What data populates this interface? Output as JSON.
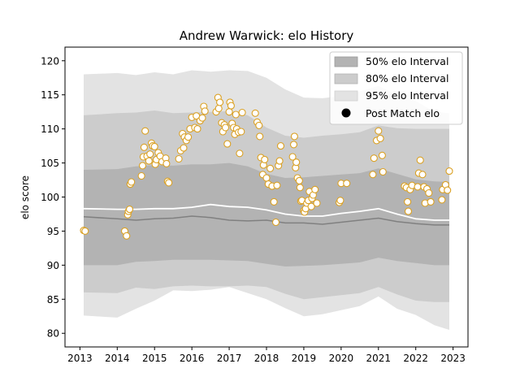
{
  "chart_data": {
    "type": "scatter",
    "title": "Andrew Warwick: elo History",
    "xlabel": "",
    "ylabel": "elo score",
    "xlim": [
      2012.6,
      2023.4
    ],
    "ylim": [
      78,
      122
    ],
    "x_ticks": [
      "2013",
      "2014",
      "2015",
      "2016",
      "2017",
      "2018",
      "2019",
      "2020",
      "2021",
      "2022",
      "2023"
    ],
    "y_ticks": [
      "80",
      "85",
      "90",
      "95",
      "100",
      "105",
      "110",
      "115",
      "120"
    ],
    "grid": false,
    "legend_position": "top-right",
    "bands": {
      "x": [
        2013.1,
        2014.0,
        2014.5,
        2015.0,
        2015.5,
        2016.0,
        2016.5,
        2017.0,
        2017.5,
        2018.0,
        2018.5,
        2019.0,
        2019.5,
        2020.0,
        2020.5,
        2021.0,
        2021.5,
        2022.0,
        2022.5,
        2022.9
      ],
      "interval_95": {
        "lower": [
          82.6,
          82.3,
          83.6,
          84.8,
          86.3,
          86.2,
          86.4,
          86.8,
          85.9,
          85.0,
          83.7,
          82.5,
          82.8,
          83.4,
          84.0,
          85.4,
          83.6,
          82.7,
          81.2,
          80.5
        ],
        "upper": [
          118.0,
          118.2,
          117.9,
          118.3,
          118.0,
          118.6,
          118.4,
          118.6,
          118.5,
          117.5,
          115.8,
          114.6,
          114.5,
          114.8,
          115.5,
          116.3,
          115.0,
          114.1,
          112.5,
          112.3
        ]
      },
      "interval_80": {
        "lower": [
          86.0,
          85.9,
          86.7,
          86.5,
          86.9,
          87.0,
          86.9,
          86.9,
          87.0,
          86.8,
          85.8,
          85.0,
          85.3,
          85.6,
          85.9,
          86.8,
          85.7,
          84.8,
          84.6,
          84.6
        ],
        "upper": [
          112.0,
          112.3,
          112.4,
          112.7,
          112.3,
          112.4,
          112.5,
          112.6,
          112.0,
          110.2,
          109.0,
          108.7,
          109.0,
          109.2,
          109.5,
          110.5,
          110.1,
          110.0,
          110.0,
          110.0
        ]
      },
      "interval_50": {
        "lower": [
          90.0,
          90.0,
          90.5,
          90.6,
          90.8,
          90.8,
          90.8,
          90.7,
          90.6,
          90.2,
          89.8,
          89.9,
          90.0,
          90.2,
          90.4,
          91.1,
          90.6,
          90.3,
          90.0,
          90.0
        ],
        "upper": [
          104.0,
          104.1,
          104.5,
          104.7,
          104.6,
          104.8,
          104.8,
          105.0,
          104.5,
          103.4,
          102.8,
          102.9,
          103.1,
          103.3,
          103.5,
          104.2,
          103.4,
          102.6,
          102.3,
          102.2
        ]
      },
      "median": [
        97.1,
        96.8,
        96.6,
        96.8,
        96.9,
        97.2,
        97.0,
        96.6,
        96.5,
        96.6,
        96.2,
        96.2,
        96.0,
        96.3,
        96.6,
        96.9,
        96.4,
        96.1,
        95.9,
        95.9
      ],
      "mean": [
        98.3,
        98.2,
        98.2,
        98.3,
        98.3,
        98.5,
        98.9,
        98.6,
        98.5,
        98.1,
        97.5,
        97.2,
        97.2,
        97.6,
        97.9,
        98.3,
        97.5,
        96.8,
        96.6,
        96.6
      ]
    },
    "legend": [
      "50% elo Interval",
      "80% elo Interval",
      "95% elo Interval",
      "Post Match elo"
    ],
    "points": [
      {
        "x": 2013.1,
        "y": 95.1
      },
      {
        "x": 2013.14,
        "y": 95.0
      },
      {
        "x": 2014.2,
        "y": 95.0
      },
      {
        "x": 2014.25,
        "y": 94.3
      },
      {
        "x": 2014.28,
        "y": 97.4
      },
      {
        "x": 2014.3,
        "y": 97.9
      },
      {
        "x": 2014.33,
        "y": 98.2
      },
      {
        "x": 2014.35,
        "y": 101.9
      },
      {
        "x": 2014.38,
        "y": 102.2
      },
      {
        "x": 2014.65,
        "y": 103.1
      },
      {
        "x": 2014.68,
        "y": 104.6
      },
      {
        "x": 2014.7,
        "y": 105.9
      },
      {
        "x": 2014.72,
        "y": 107.3
      },
      {
        "x": 2014.75,
        "y": 109.7
      },
      {
        "x": 2014.8,
        "y": 106.0
      },
      {
        "x": 2014.85,
        "y": 105.3
      },
      {
        "x": 2014.88,
        "y": 106.3
      },
      {
        "x": 2014.92,
        "y": 107.9
      },
      {
        "x": 2014.95,
        "y": 107.5
      },
      {
        "x": 2015.0,
        "y": 107.4
      },
      {
        "x": 2015.02,
        "y": 104.8
      },
      {
        "x": 2015.05,
        "y": 105.5
      },
      {
        "x": 2015.1,
        "y": 106.5
      },
      {
        "x": 2015.15,
        "y": 106.0
      },
      {
        "x": 2015.2,
        "y": 105.2
      },
      {
        "x": 2015.3,
        "y": 105.7
      },
      {
        "x": 2015.32,
        "y": 104.9
      },
      {
        "x": 2015.35,
        "y": 102.3
      },
      {
        "x": 2015.38,
        "y": 102.1
      },
      {
        "x": 2015.65,
        "y": 105.6
      },
      {
        "x": 2015.7,
        "y": 106.8
      },
      {
        "x": 2015.75,
        "y": 109.3
      },
      {
        "x": 2015.78,
        "y": 107.2
      },
      {
        "x": 2015.8,
        "y": 108.8
      },
      {
        "x": 2015.85,
        "y": 108.3
      },
      {
        "x": 2015.9,
        "y": 108.8
      },
      {
        "x": 2015.95,
        "y": 110.0
      },
      {
        "x": 2016.0,
        "y": 111.7
      },
      {
        "x": 2016.08,
        "y": 110.2
      },
      {
        "x": 2016.12,
        "y": 111.9
      },
      {
        "x": 2016.15,
        "y": 110.0
      },
      {
        "x": 2016.22,
        "y": 111.2
      },
      {
        "x": 2016.28,
        "y": 111.6
      },
      {
        "x": 2016.32,
        "y": 113.3
      },
      {
        "x": 2016.35,
        "y": 112.6
      },
      {
        "x": 2016.65,
        "y": 112.5
      },
      {
        "x": 2016.7,
        "y": 114.6
      },
      {
        "x": 2016.72,
        "y": 113.0
      },
      {
        "x": 2016.75,
        "y": 113.9
      },
      {
        "x": 2016.8,
        "y": 110.9
      },
      {
        "x": 2016.83,
        "y": 109.6
      },
      {
        "x": 2016.87,
        "y": 110.6
      },
      {
        "x": 2016.9,
        "y": 110.2
      },
      {
        "x": 2016.95,
        "y": 107.8
      },
      {
        "x": 2017.0,
        "y": 112.5
      },
      {
        "x": 2017.02,
        "y": 113.9
      },
      {
        "x": 2017.05,
        "y": 113.4
      },
      {
        "x": 2017.08,
        "y": 110.8
      },
      {
        "x": 2017.12,
        "y": 110.2
      },
      {
        "x": 2017.15,
        "y": 109.2
      },
      {
        "x": 2017.18,
        "y": 112.1
      },
      {
        "x": 2017.2,
        "y": 110.0
      },
      {
        "x": 2017.25,
        "y": 109.5
      },
      {
        "x": 2017.28,
        "y": 106.4
      },
      {
        "x": 2017.32,
        "y": 109.6
      },
      {
        "x": 2017.35,
        "y": 112.4
      },
      {
        "x": 2017.7,
        "y": 112.3
      },
      {
        "x": 2017.75,
        "y": 111.0
      },
      {
        "x": 2017.8,
        "y": 110.5
      },
      {
        "x": 2017.82,
        "y": 108.9
      },
      {
        "x": 2017.85,
        "y": 105.8
      },
      {
        "x": 2017.9,
        "y": 103.3
      },
      {
        "x": 2017.92,
        "y": 104.7
      },
      {
        "x": 2017.95,
        "y": 105.5
      },
      {
        "x": 2018.0,
        "y": 102.8
      },
      {
        "x": 2018.05,
        "y": 101.9
      },
      {
        "x": 2018.1,
        "y": 104.2
      },
      {
        "x": 2018.15,
        "y": 101.6
      },
      {
        "x": 2018.2,
        "y": 99.3
      },
      {
        "x": 2018.25,
        "y": 96.3
      },
      {
        "x": 2018.28,
        "y": 101.7
      },
      {
        "x": 2018.32,
        "y": 104.6
      },
      {
        "x": 2018.35,
        "y": 105.3
      },
      {
        "x": 2018.38,
        "y": 107.5
      },
      {
        "x": 2018.7,
        "y": 105.9
      },
      {
        "x": 2018.73,
        "y": 107.7
      },
      {
        "x": 2018.75,
        "y": 108.9
      },
      {
        "x": 2018.78,
        "y": 104.3
      },
      {
        "x": 2018.8,
        "y": 105.1
      },
      {
        "x": 2018.83,
        "y": 102.8
      },
      {
        "x": 2018.88,
        "y": 102.4
      },
      {
        "x": 2018.9,
        "y": 101.4
      },
      {
        "x": 2018.92,
        "y": 99.4
      },
      {
        "x": 2018.95,
        "y": 99.5
      },
      {
        "x": 2019.0,
        "y": 98.0
      },
      {
        "x": 2019.02,
        "y": 97.8
      },
      {
        "x": 2019.05,
        "y": 98.3
      },
      {
        "x": 2019.08,
        "y": 99.1
      },
      {
        "x": 2019.12,
        "y": 99.5
      },
      {
        "x": 2019.15,
        "y": 100.8
      },
      {
        "x": 2019.2,
        "y": 98.6
      },
      {
        "x": 2019.22,
        "y": 99.8
      },
      {
        "x": 2019.25,
        "y": 100.3
      },
      {
        "x": 2019.3,
        "y": 101.1
      },
      {
        "x": 2019.35,
        "y": 99.1
      },
      {
        "x": 2019.95,
        "y": 99.2
      },
      {
        "x": 2019.98,
        "y": 99.5
      },
      {
        "x": 2020.0,
        "y": 102.0
      },
      {
        "x": 2020.15,
        "y": 102.0
      },
      {
        "x": 2020.85,
        "y": 103.3
      },
      {
        "x": 2020.88,
        "y": 105.7
      },
      {
        "x": 2020.95,
        "y": 108.3
      },
      {
        "x": 2021.0,
        "y": 109.7
      },
      {
        "x": 2021.05,
        "y": 108.6
      },
      {
        "x": 2021.1,
        "y": 106.1
      },
      {
        "x": 2021.12,
        "y": 103.7
      },
      {
        "x": 2021.7,
        "y": 101.6
      },
      {
        "x": 2021.75,
        "y": 101.4
      },
      {
        "x": 2021.78,
        "y": 99.3
      },
      {
        "x": 2021.8,
        "y": 97.9
      },
      {
        "x": 2021.85,
        "y": 101.1
      },
      {
        "x": 2021.9,
        "y": 101.7
      },
      {
        "x": 2022.05,
        "y": 101.5
      },
      {
        "x": 2022.08,
        "y": 103.5
      },
      {
        "x": 2022.12,
        "y": 105.4
      },
      {
        "x": 2022.18,
        "y": 103.3
      },
      {
        "x": 2022.22,
        "y": 101.5
      },
      {
        "x": 2022.25,
        "y": 99.1
      },
      {
        "x": 2022.3,
        "y": 101.2
      },
      {
        "x": 2022.35,
        "y": 100.6
      },
      {
        "x": 2022.4,
        "y": 99.3
      },
      {
        "x": 2022.7,
        "y": 99.6
      },
      {
        "x": 2022.72,
        "y": 101.1
      },
      {
        "x": 2022.8,
        "y": 101.8
      },
      {
        "x": 2022.85,
        "y": 101.0
      },
      {
        "x": 2022.9,
        "y": 103.8
      }
    ],
    "colors": {
      "interval_95": "#e3e3e3",
      "interval_80": "#cccccc",
      "interval_50": "#b3b3b3",
      "median_line": "#808080",
      "mean_line": "#ffffff",
      "point_edge": "#dba124",
      "point_fill": "#ffffff"
    }
  }
}
